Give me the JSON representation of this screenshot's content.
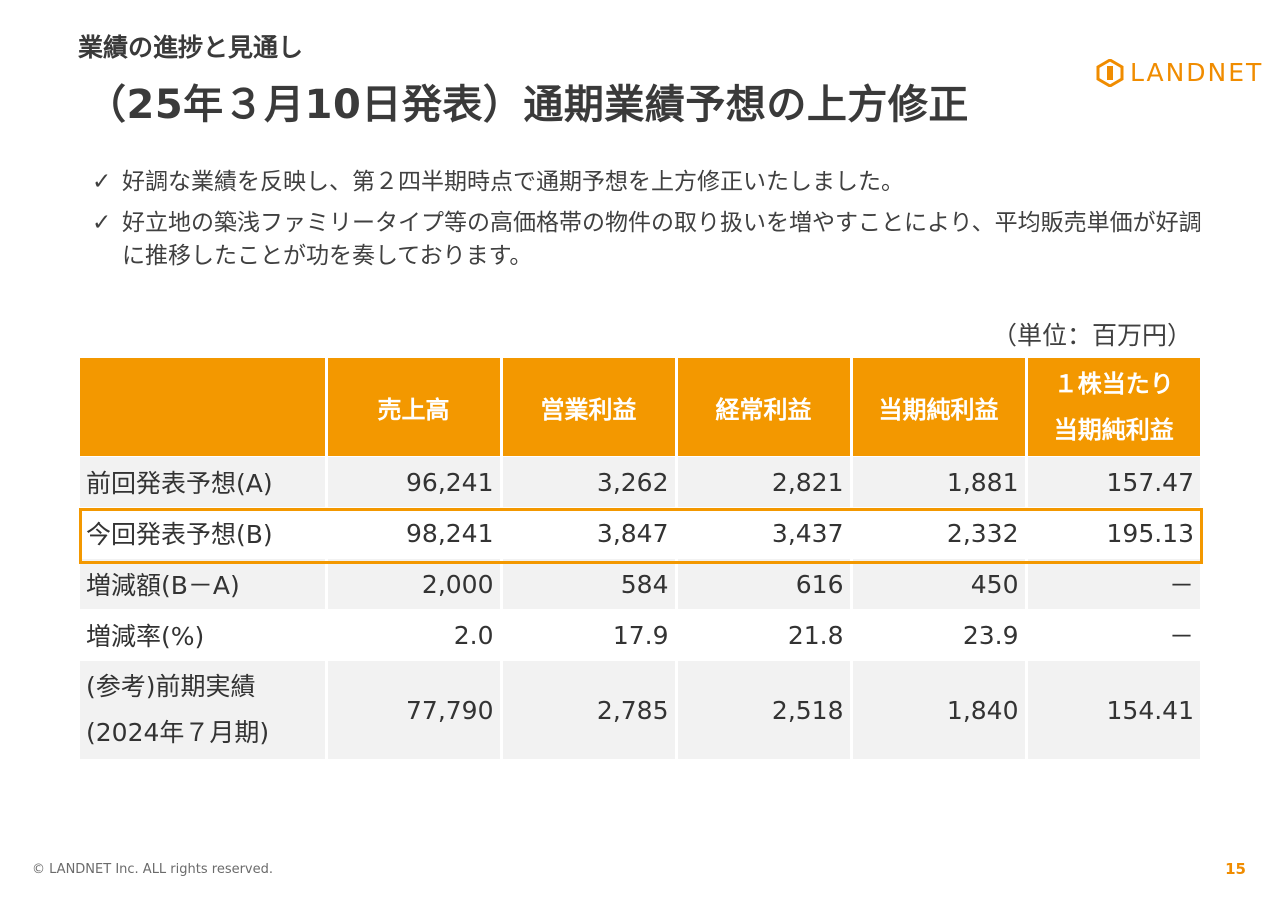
{
  "header": {
    "subtitle": "業績の進捗と見通し",
    "title": "（25年３月10日発表）通期業績予想の上方修正"
  },
  "logo": {
    "text": "LANDNET",
    "color": "#f08c00"
  },
  "bullets": [
    "好調な業績を反映し、第２四半期時点で通期予想を上方修正いたしました。",
    "好立地の築浅ファミリータイプ等の高価格帯の物件の取り扱いを増やすことにより、平均販売単価が好調に推移したことが功を奏しております。"
  ],
  "bullet_icon": "✓",
  "table": {
    "unit": "（単位：百万円）",
    "headers": [
      "",
      "売上高",
      "営業利益",
      "経常利益",
      "当期純利益"
    ],
    "header_last_line1": "１株当たり",
    "header_last_line2": "当期純利益",
    "rows": [
      {
        "label": "前回発表予想(A)",
        "values": [
          "96,241",
          "3,262",
          "2,821",
          "1,881",
          "157.47"
        ]
      },
      {
        "label": "今回発表予想(B)",
        "values": [
          "98,241",
          "3,847",
          "3,437",
          "2,332",
          "195.13"
        ]
      },
      {
        "label": "増減額(B－A)",
        "values": [
          "2,000",
          "584",
          "616",
          "450",
          "－"
        ]
      },
      {
        "label": "増減率(%)",
        "values": [
          "2.0",
          "17.9",
          "21.8",
          "23.9",
          "－"
        ]
      }
    ],
    "last_row": {
      "label_line1": "(参考)前期実績",
      "label_line2": "(2024年７月期)",
      "values": [
        "77,790",
        "2,785",
        "2,518",
        "1,840",
        "154.41"
      ]
    },
    "header_color": "#f39800",
    "highlight_color": "#f39800"
  },
  "footer": {
    "copyright": "© LANDNET Inc. ALL rights reserved.",
    "page_number": "15"
  }
}
